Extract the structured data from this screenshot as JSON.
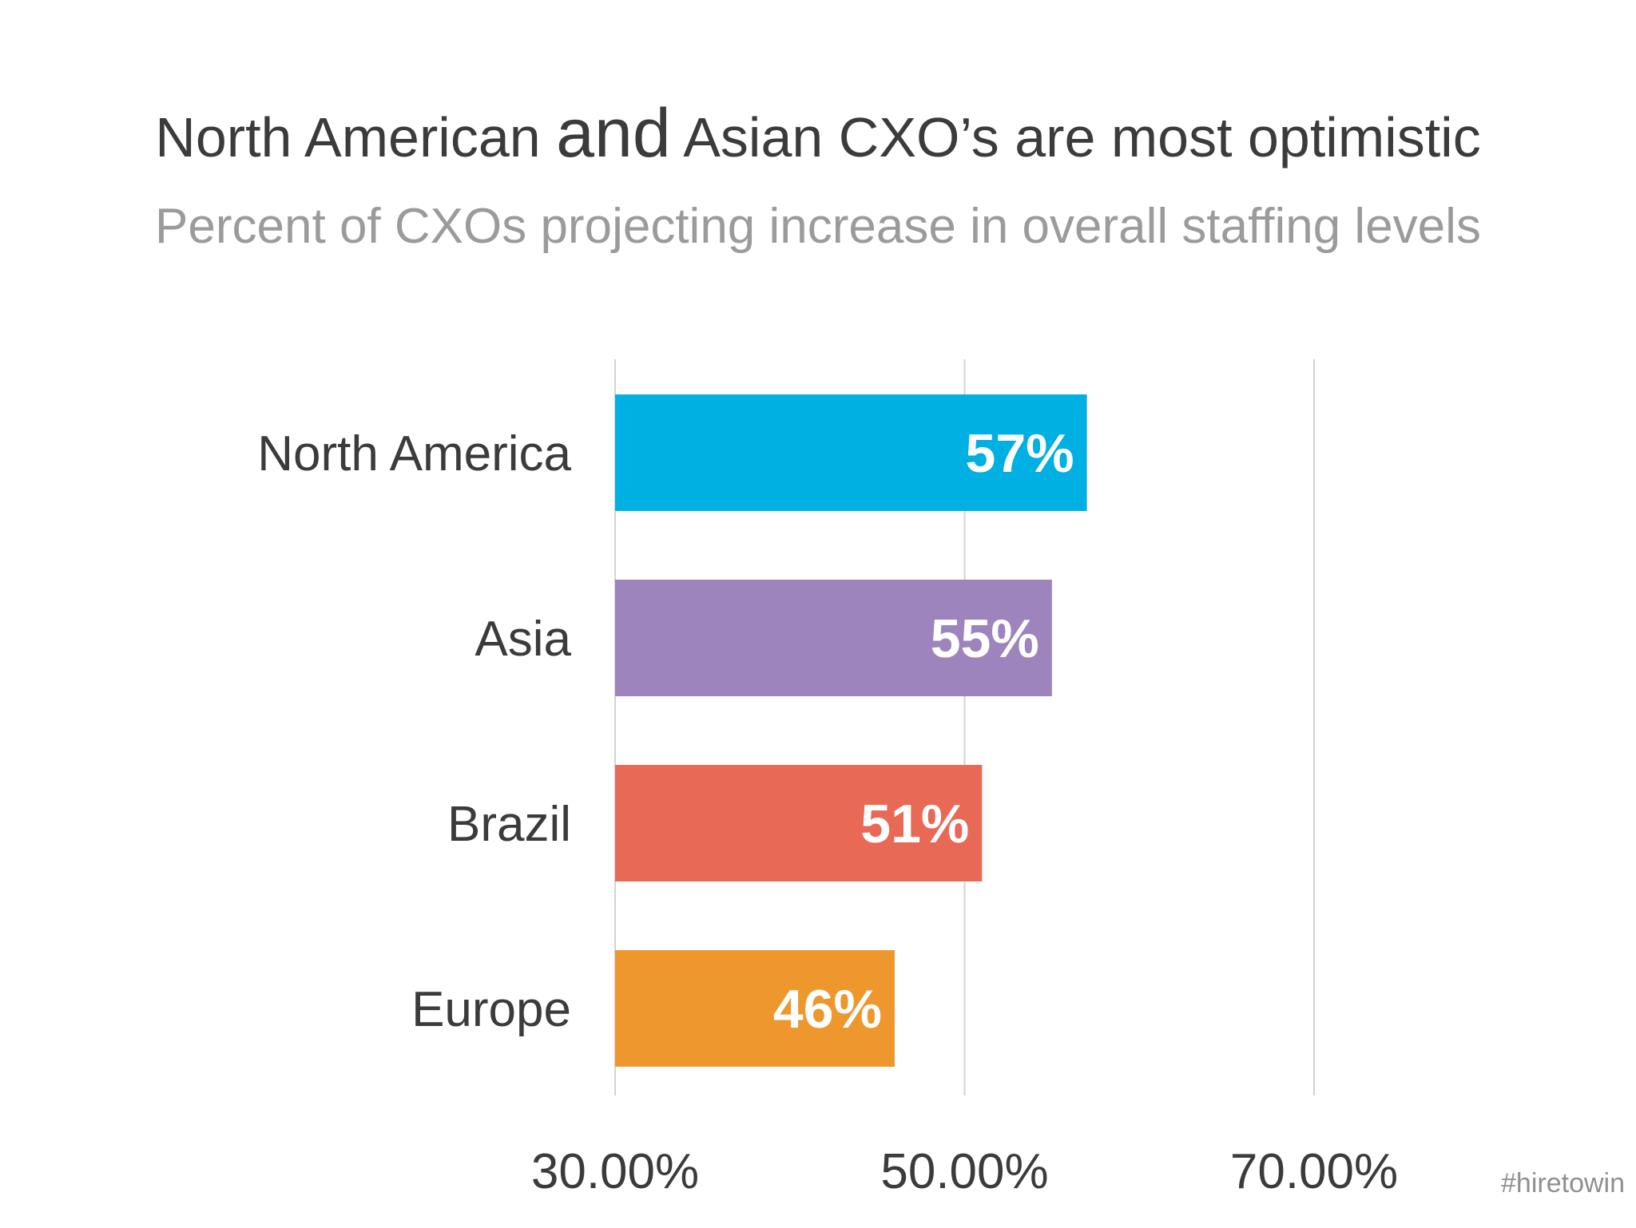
{
  "chart_data": {
    "type": "bar",
    "orientation": "horizontal",
    "title": {
      "part1": "North American ",
      "part2": "and",
      "part3": " Asian CXO’s are most optimistic"
    },
    "subtitle": "Percent of CXOs projecting increase in overall staffing levels",
    "categories": [
      "North America",
      "Asia",
      "Brazil",
      "Europe"
    ],
    "values": [
      57,
      55,
      51,
      46
    ],
    "value_labels": [
      "57%",
      "55%",
      "51%",
      "46%"
    ],
    "bar_colors": [
      "#00b0e2",
      "#9e84bc",
      "#e86956",
      "#ed972d"
    ],
    "xlim": [
      30,
      70
    ],
    "x_ticks": [
      30,
      50,
      70
    ],
    "x_tick_labels": [
      "30.00%",
      "50.00%",
      "70.00%"
    ],
    "grid": true
  },
  "watermark": "#hiretowin"
}
